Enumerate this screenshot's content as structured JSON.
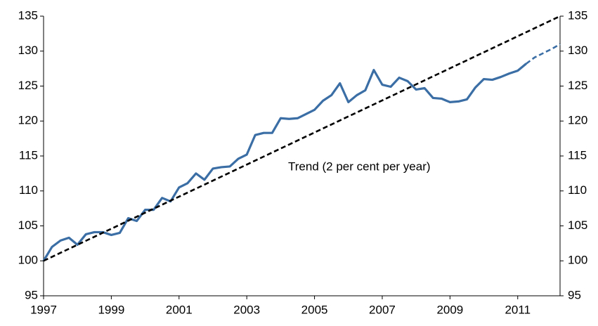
{
  "chart_data": {
    "type": "line",
    "annotations": [
      "Trend (2 per cent per year)"
    ],
    "xlim": [
      1997,
      2012.25
    ],
    "xticks": [
      1997,
      1999,
      2001,
      2003,
      2005,
      2007,
      2009,
      2011
    ],
    "ylim": [
      95,
      135
    ],
    "yticks": [
      95,
      100,
      105,
      110,
      115,
      120,
      125,
      130,
      135
    ],
    "y2lim": [
      95,
      135
    ],
    "y2ticks": [
      95,
      100,
      105,
      110,
      115,
      120,
      125,
      130,
      135
    ],
    "series": [
      {
        "color": "#3a6ea5",
        "dash": false,
        "x": [
          1997,
          1997.25,
          1997.5,
          1997.75,
          1998,
          1998.25,
          1998.5,
          1998.75,
          1999,
          1999.25,
          1999.5,
          1999.75,
          2000,
          2000.25,
          2000.5,
          2000.75,
          2001,
          2001.25,
          2001.5,
          2001.75,
          2002,
          2002.25,
          2002.5,
          2002.75,
          2003,
          2003.25,
          2003.5,
          2003.75,
          2004,
          2004.25,
          2004.5,
          2004.75,
          2005,
          2005.25,
          2005.5,
          2005.75,
          2006,
          2006.25,
          2006.5,
          2006.75,
          2007,
          2007.25,
          2007.5,
          2007.75,
          2008,
          2008.25,
          2008.5,
          2008.75,
          2009,
          2009.25,
          2009.5,
          2009.75,
          2010,
          2010.25,
          2010.5,
          2010.75,
          2011,
          2011.25
        ],
        "values": [
          100,
          102.0,
          102.9,
          103.3,
          102.3,
          103.8,
          104.1,
          104.1,
          103.7,
          104.0,
          106.1,
          105.7,
          107.3,
          107.3,
          109.0,
          108.5,
          110.5,
          111.1,
          112.5,
          111.6,
          113.2,
          113.4,
          113.5,
          114.6,
          115.2,
          118.0,
          118.3,
          118.3,
          120.4,
          120.3,
          120.4,
          121.0,
          121.6,
          122.9,
          123.7,
          125.4,
          122.7,
          123.7,
          124.4,
          127.3,
          125.2,
          124.9,
          126.2,
          125.7,
          124.5,
          124.7,
          123.3,
          123.2,
          122.7,
          122.8,
          123.1,
          124.8,
          126.0,
          125.9,
          126.3,
          126.8,
          127.2,
          128.2
        ]
      },
      {
        "color": "#3a6ea5",
        "dash": true,
        "x": [
          2011.25,
          2011.5,
          2011.75,
          2012,
          2012.25
        ],
        "values": [
          128.2,
          129.1,
          129.7,
          130.3,
          131.0
        ]
      },
      {
        "color": "#000000",
        "dash": true,
        "x": [
          1997,
          2012.25
        ],
        "values": [
          100,
          135
        ]
      }
    ]
  }
}
